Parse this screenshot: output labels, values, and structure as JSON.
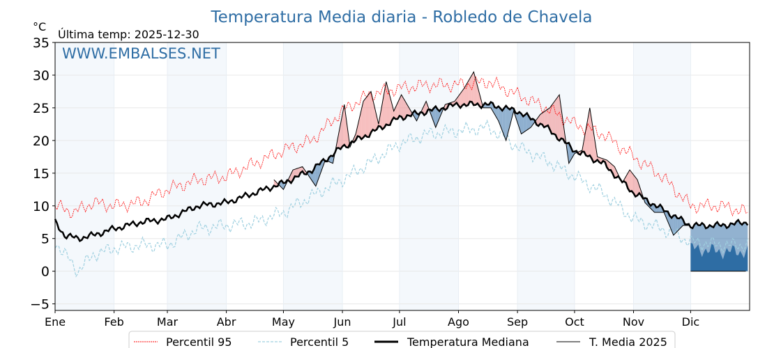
{
  "chart_data": {
    "type": "line",
    "title": "Temperatura Media diaria - Robledo de Chavela",
    "ylabel": "°C",
    "subtitle": "Última temp: 2025-12-30",
    "watermark": "WWW.EMBALSES.NET",
    "ylim": [
      -6,
      35
    ],
    "yticks": [
      35,
      30,
      25,
      20,
      15,
      10,
      5,
      0,
      -5
    ],
    "ytick_labels": [
      "35",
      "30",
      "25",
      "20",
      "15",
      "10",
      "5",
      "0",
      "−5"
    ],
    "months": [
      "Ene",
      "Feb",
      "Mar",
      "Abr",
      "May",
      "Jun",
      "Jul",
      "Ago",
      "Sep",
      "Oct",
      "Nov",
      "Dic"
    ],
    "month_start_days": [
      0,
      31,
      59,
      90,
      120,
      151,
      181,
      212,
      243,
      273,
      304,
      334
    ],
    "days_in_year": 365,
    "legend": [
      "Percentil 95",
      "Percentil 5",
      "Temperatura Mediana",
      "T. Media 2025"
    ],
    "legend_position": "bottom-center",
    "colors": {
      "p95": "#ff0000",
      "p5": "#9fd0e0",
      "median": "#000000",
      "t2025": "#000000",
      "above": "#f08080",
      "below": "#4a7fb0",
      "zero_fill": "#2e6da4",
      "band": "#f4f8fc"
    },
    "series": {
      "p95": {
        "days": [
          0,
          10,
          20,
          31,
          45,
          59,
          75,
          90,
          105,
          120,
          135,
          151,
          165,
          181,
          196,
          212,
          228,
          243,
          258,
          273,
          288,
          304,
          319,
          334,
          350,
          364
        ],
        "values": [
          10,
          9,
          10.5,
          10,
          10.5,
          12.5,
          14,
          14.5,
          16.5,
          18.5,
          20,
          24.5,
          27,
          28,
          28.5,
          28.5,
          29,
          27,
          25,
          22.5,
          21,
          17.5,
          14.5,
          10,
          10,
          9
        ]
      },
      "p5": {
        "days": [
          0,
          8,
          12,
          20,
          31,
          45,
          59,
          75,
          90,
          105,
          120,
          135,
          151,
          165,
          181,
          196,
          212,
          228,
          243,
          258,
          273,
          288,
          304,
          319,
          334,
          350,
          364
        ],
        "values": [
          4.5,
          1.5,
          0,
          2.5,
          3.5,
          4,
          4,
          6.5,
          7,
          7.5,
          9,
          11.5,
          14,
          16.5,
          19.5,
          21,
          21.5,
          22,
          19,
          17,
          14.5,
          12,
          8,
          6.5,
          4.5,
          4,
          4
        ]
      },
      "median": {
        "days": [
          0,
          5,
          12,
          20,
          31,
          45,
          59,
          75,
          90,
          105,
          120,
          135,
          151,
          165,
          181,
          196,
          212,
          228,
          243,
          258,
          273,
          288,
          304,
          319,
          334,
          350,
          364
        ],
        "values": [
          7.5,
          5.5,
          5,
          5.5,
          6.5,
          7.5,
          8,
          10,
          10.5,
          12,
          13.5,
          15.5,
          19,
          21,
          23.5,
          24.5,
          25.5,
          25.5,
          24.5,
          22,
          18.5,
          16.5,
          12,
          9.5,
          7,
          7,
          7.5
        ]
      },
      "t2025": {
        "days": [
          115,
          120,
          125,
          130,
          137,
          142,
          146,
          150,
          152,
          155,
          158,
          162,
          166,
          170,
          174,
          178,
          182,
          186,
          190,
          195,
          200,
          205,
          210,
          215,
          220,
          225,
          229,
          233,
          237,
          241,
          245,
          250,
          255,
          260,
          265,
          270,
          273,
          277,
          281,
          285,
          290,
          294,
          298,
          302,
          306,
          310,
          315,
          320,
          325,
          330,
          333
        ],
        "values": [
          14,
          12.5,
          15.5,
          16,
          13,
          17,
          16.5,
          22.5,
          25.5,
          19,
          21,
          26,
          27.5,
          22.5,
          29,
          24.5,
          27,
          25,
          23,
          26,
          22,
          25.5,
          26,
          28,
          30.5,
          25,
          25,
          23,
          20,
          24.5,
          21,
          22,
          24,
          25,
          27,
          16.5,
          18,
          18.5,
          25,
          17.5,
          17,
          16,
          13.5,
          15.5,
          14,
          10.5,
          9,
          9,
          5.5,
          7,
          7
        ]
      }
    },
    "zero_from_day": 334
  }
}
